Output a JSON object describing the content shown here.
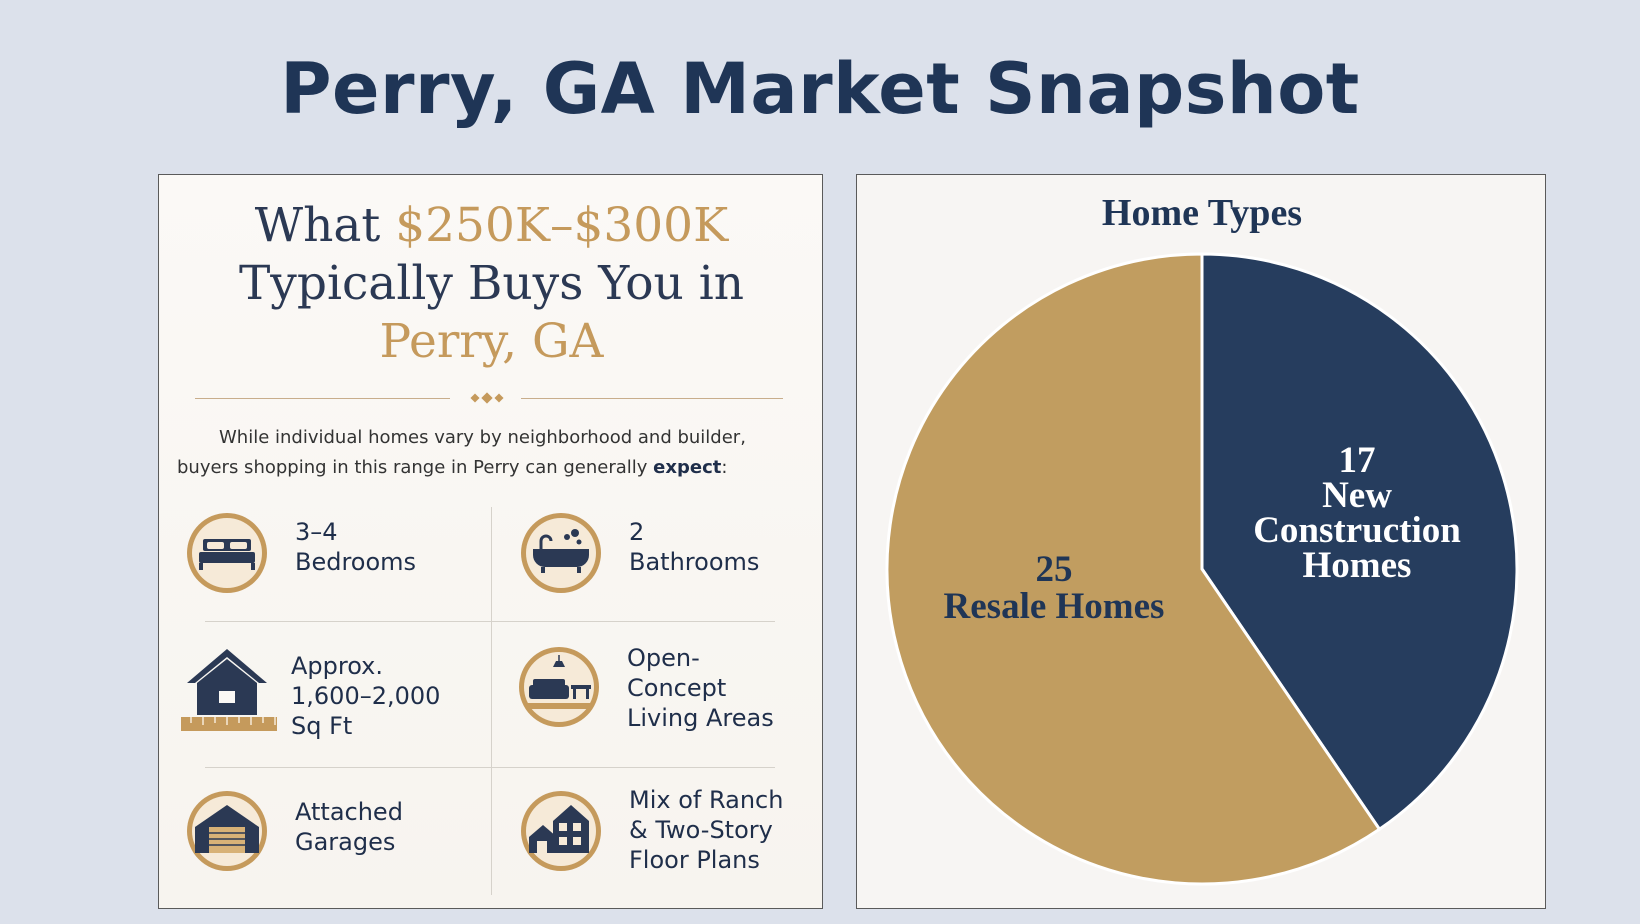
{
  "page_title": "Perry, GA Market Snapshot",
  "infographic": {
    "title_line1_prefix": "What ",
    "title_line1_highlight": "$250K–$300K",
    "title_line2": "Typically Buys You in",
    "title_line3": "Perry, GA",
    "intro_line1": "While individual homes vary by neighborhood and builder,",
    "intro_line2_prefix": "buyers shopping in this range in Perry can generally ",
    "intro_line2_bold": "expect",
    "intro_line2_suffix": ":",
    "features": [
      {
        "label": "3–4\nBedrooms",
        "icon": "bed-icon"
      },
      {
        "label": "2\nBathrooms",
        "icon": "bathtub-icon"
      },
      {
        "label": "Approx.\n1,600–2,000\nSq Ft",
        "icon": "house-ruler-icon"
      },
      {
        "label": "Open-\nConcept\nLiving Areas",
        "icon": "living-room-icon"
      },
      {
        "label": "Attached\nGarages",
        "icon": "garage-icon"
      },
      {
        "label": "Mix of Ranch\n& Two-Story\nFloor Plans",
        "icon": "two-houses-icon"
      }
    ],
    "colors": {
      "navy": "#2b3954",
      "gold": "#c59a5c"
    }
  },
  "chart_data": {
    "type": "pie",
    "title": "Home Types",
    "slices": [
      {
        "name": "New Construction Homes",
        "value": 17,
        "label_lines": [
          "17",
          "New",
          "Construction",
          "Homes"
        ],
        "color": "#263d5e"
      },
      {
        "name": "Resale Homes",
        "value": 25,
        "label_lines": [
          "25",
          "Resale Homes"
        ],
        "color": "#c19d60"
      }
    ],
    "start_angle": "12 o'clock",
    "direction": "clockwise",
    "legend": "none"
  }
}
